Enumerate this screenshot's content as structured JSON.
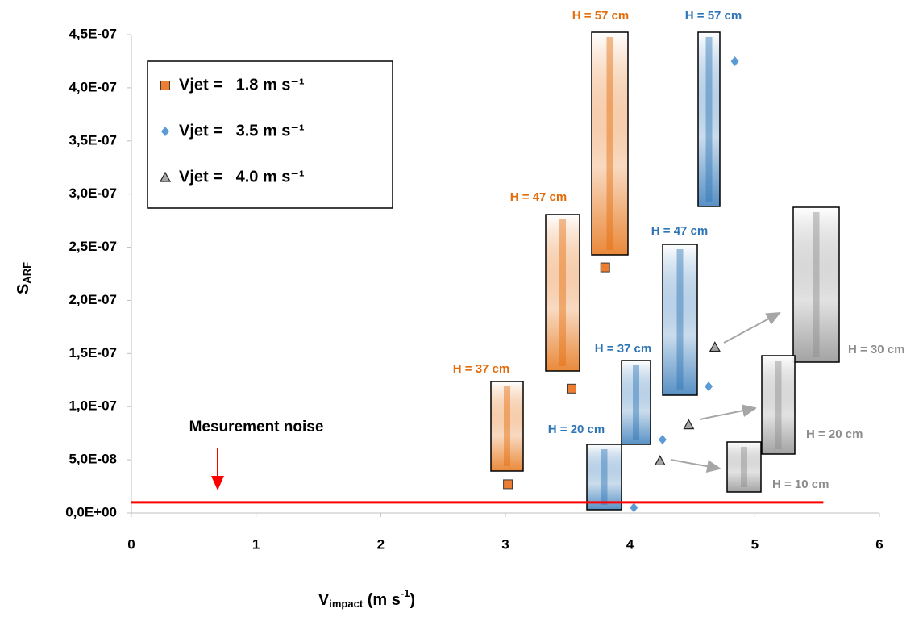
{
  "chart_data": {
    "type": "scatter",
    "ylabel": {
      "main": "S",
      "sub": "ARF"
    },
    "xlabel": {
      "parts": [
        "V",
        "impact",
        " (m s",
        "-1",
        ")"
      ]
    },
    "xlim": [
      0,
      6
    ],
    "xticks": [
      0,
      1,
      2,
      3,
      4,
      5,
      6
    ],
    "ylim": [
      0,
      4.5e-07
    ],
    "yticks": [
      {
        "value": 0,
        "label": "0,0E+00"
      },
      {
        "value": 5e-08,
        "label": "5,0E-08"
      },
      {
        "value": 1e-07,
        "label": "1,0E-07"
      },
      {
        "value": 1.5e-07,
        "label": "1,5E-07"
      },
      {
        "value": 2e-07,
        "label": "2,0E-07"
      },
      {
        "value": 2.5e-07,
        "label": "2,5E-07"
      },
      {
        "value": 3e-07,
        "label": "3,0E-07"
      },
      {
        "value": 3.5e-07,
        "label": "3,5E-07"
      },
      {
        "value": 4e-07,
        "label": "4,0E-07"
      },
      {
        "value": 4.5e-07,
        "label": "4,5E-07"
      }
    ],
    "grid": false,
    "legend": "top-left",
    "series": [
      {
        "name": "Vjet =   1.8 m s⁻¹",
        "color": "#ed7d31",
        "marker": "square",
        "x": [
          3.02,
          3.53,
          3.8
        ],
        "values": [
          2.7e-08,
          1.17e-07,
          2.31e-07
        ]
      },
      {
        "name": "Vjet =   3.5 m s⁻¹",
        "color": "#5b9bd5",
        "marker": "diamond",
        "x": [
          4.03,
          4.26,
          4.63,
          4.84
        ],
        "values": [
          5e-09,
          6.9e-08,
          1.19e-07,
          4.25e-07
        ]
      },
      {
        "name": "Vjet =   4.0 m s⁻¹",
        "color": "#a5a5a5",
        "marker": "triangle",
        "x": [
          4.24,
          4.47,
          4.68
        ],
        "values": [
          4.9e-08,
          8.3e-08,
          1.56e-07
        ]
      }
    ],
    "reference_line": {
      "value": 1e-08,
      "x": [
        0,
        5.55
      ],
      "color": "#ff0000",
      "label": "Mesurement noise"
    },
    "insets": [
      {
        "label": "H = 37 cm",
        "color": "#e46c0a"
      },
      {
        "label": "H = 47 cm",
        "color": "#e46c0a"
      },
      {
        "label": "H = 57 cm",
        "color": "#e46c0a"
      },
      {
        "label": "H = 57 cm",
        "color": "#2e75b6"
      },
      {
        "label": "H = 47 cm",
        "color": "#2e75b6"
      },
      {
        "label": "H = 37 cm",
        "color": "#2e75b6"
      },
      {
        "label": "H = 20 cm",
        "color": "#2e75b6"
      },
      {
        "label": "H = 30 cm",
        "color": "#8c8c8c"
      },
      {
        "label": "H = 20 cm",
        "color": "#8c8c8c"
      },
      {
        "label": "H = 10 cm",
        "color": "#8c8c8c"
      }
    ]
  }
}
